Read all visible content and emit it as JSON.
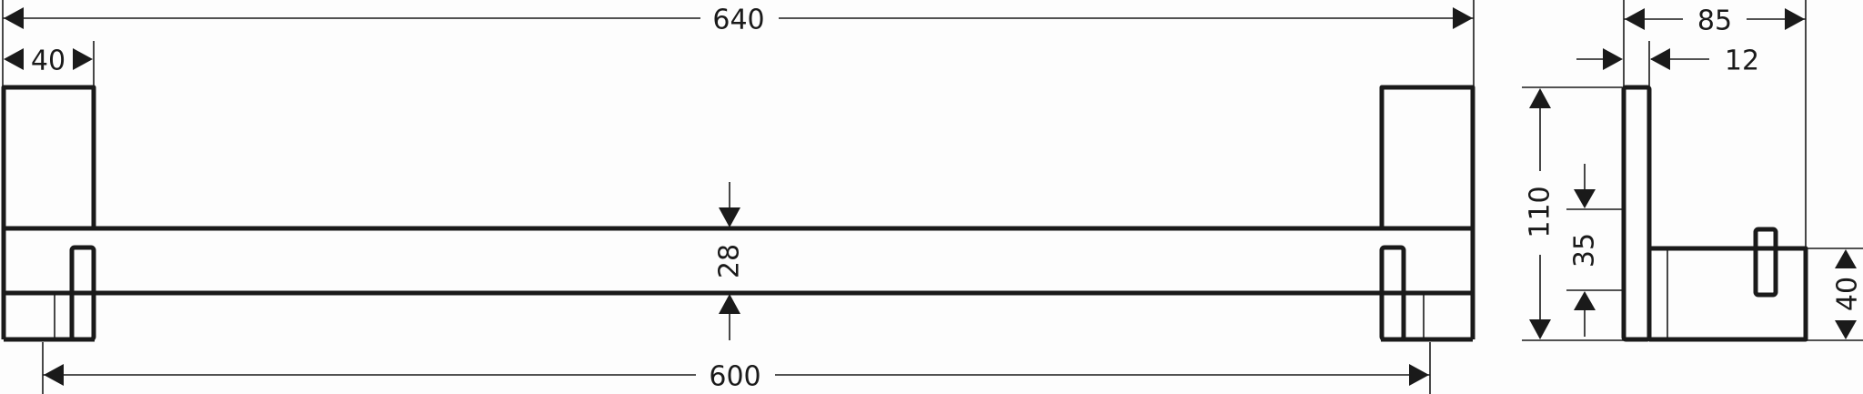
{
  "dimensions": {
    "overall_length": "640",
    "post_width": "40",
    "bar_height": "28",
    "mounting_distance": "600",
    "depth": "85",
    "plate_thickness": "12",
    "height": "110",
    "bar_offset": "35",
    "rail_height": "40"
  },
  "colors": {
    "line": "#1a1a1a",
    "background": "#fdfdfd"
  }
}
